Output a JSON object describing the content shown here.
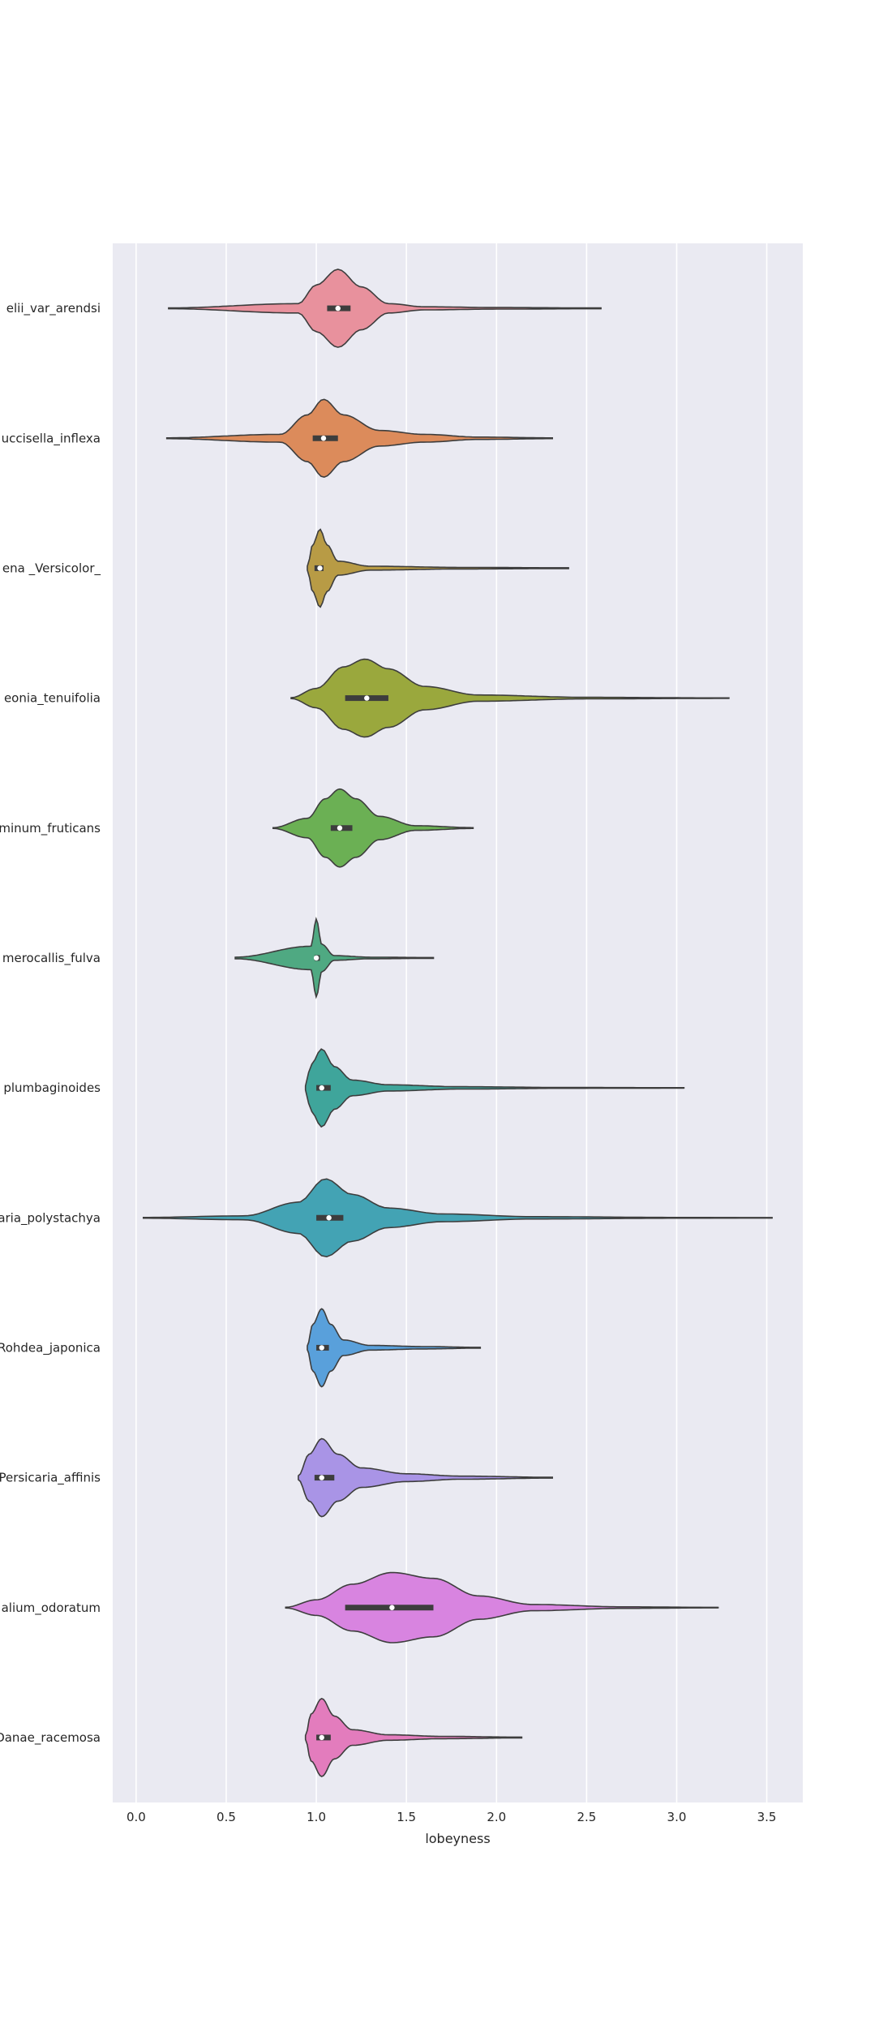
{
  "chart_data": {
    "type": "violin",
    "orientation": "horizontal",
    "xlabel": "lobeyness",
    "ylabel": "",
    "xlim": [
      -0.13,
      3.7
    ],
    "xticks": [
      0.0,
      0.5,
      1.0,
      1.5,
      2.0,
      2.5,
      3.0,
      3.5
    ],
    "xtick_labels": [
      "0.0",
      "0.5",
      "1.0",
      "1.5",
      "2.0",
      "2.5",
      "3.0",
      "3.5"
    ],
    "grid": true,
    "background": "#eaeaf2",
    "categories": [
      "elii_var_arendsi",
      "uccisella_inflexa",
      "ena _Versicolor_",
      "eonia_tenuifolia",
      "minum_fruticans",
      "merocallis_fulva",
      "plumbaginoides",
      "aria_polystachya",
      "Rohdea_japonica",
      "Persicaria_affinis",
      "alium_odoratum",
      "Danae_racemosa"
    ],
    "series": [
      {
        "min": 0.18,
        "q1": 1.06,
        "median": 1.12,
        "q3": 1.19,
        "max": 2.58,
        "color": "#e8919d",
        "density": [
          [
            0.18,
            0.01
          ],
          [
            0.9,
            0.12
          ],
          [
            1.0,
            0.6
          ],
          [
            1.12,
            1.0
          ],
          [
            1.25,
            0.55
          ],
          [
            1.4,
            0.12
          ],
          [
            1.6,
            0.04
          ],
          [
            2.0,
            0.02
          ],
          [
            2.58,
            0.01
          ]
        ]
      },
      {
        "min": 0.17,
        "q1": 0.98,
        "median": 1.04,
        "q3": 1.12,
        "max": 2.31,
        "color": "#dc8b5b",
        "density": [
          [
            0.17,
            0.01
          ],
          [
            0.8,
            0.1
          ],
          [
            0.95,
            0.6
          ],
          [
            1.04,
            1.0
          ],
          [
            1.15,
            0.6
          ],
          [
            1.35,
            0.2
          ],
          [
            1.6,
            0.1
          ],
          [
            1.9,
            0.03
          ],
          [
            2.31,
            0.01
          ]
        ]
      },
      {
        "min": 0.95,
        "q1": 0.99,
        "median": 1.02,
        "q3": 1.04,
        "max": 2.4,
        "color": "#b89b45",
        "density": [
          [
            0.95,
            0.05
          ],
          [
            0.98,
            0.6
          ],
          [
            1.02,
            1.0
          ],
          [
            1.06,
            0.6
          ],
          [
            1.12,
            0.18
          ],
          [
            1.3,
            0.05
          ],
          [
            1.8,
            0.02
          ],
          [
            2.4,
            0.01
          ]
        ]
      },
      {
        "min": 0.86,
        "q1": 1.16,
        "median": 1.28,
        "q3": 1.4,
        "max": 3.29,
        "color": "#9aa83d",
        "density": [
          [
            0.86,
            0.01
          ],
          [
            1.0,
            0.25
          ],
          [
            1.15,
            0.8
          ],
          [
            1.27,
            1.0
          ],
          [
            1.4,
            0.75
          ],
          [
            1.6,
            0.3
          ],
          [
            1.9,
            0.08
          ],
          [
            2.5,
            0.02
          ],
          [
            3.29,
            0.005
          ]
        ]
      },
      {
        "min": 0.76,
        "q1": 1.08,
        "median": 1.13,
        "q3": 1.2,
        "max": 1.87,
        "color": "#6bb054",
        "density": [
          [
            0.76,
            0.01
          ],
          [
            0.95,
            0.25
          ],
          [
            1.05,
            0.75
          ],
          [
            1.13,
            1.0
          ],
          [
            1.22,
            0.75
          ],
          [
            1.35,
            0.3
          ],
          [
            1.55,
            0.06
          ],
          [
            1.87,
            0.01
          ]
        ]
      },
      {
        "min": 0.55,
        "q1": 0.99,
        "median": 1.0,
        "q3": 1.02,
        "max": 1.65,
        "color": "#4fa982",
        "density": [
          [
            0.55,
            0.02
          ],
          [
            0.97,
            0.3
          ],
          [
            1.0,
            1.0
          ],
          [
            1.03,
            0.35
          ],
          [
            1.1,
            0.06
          ],
          [
            1.3,
            0.02
          ],
          [
            1.65,
            0.01
          ]
        ]
      },
      {
        "min": 0.94,
        "q1": 1.0,
        "median": 1.03,
        "q3": 1.08,
        "max": 3.04,
        "color": "#3fa59b",
        "density": [
          [
            0.94,
            0.05
          ],
          [
            0.97,
            0.6
          ],
          [
            1.03,
            1.0
          ],
          [
            1.1,
            0.55
          ],
          [
            1.2,
            0.2
          ],
          [
            1.4,
            0.08
          ],
          [
            1.8,
            0.03
          ],
          [
            2.4,
            0.01
          ],
          [
            3.04,
            0.005
          ]
        ]
      },
      {
        "min": 0.04,
        "q1": 1.0,
        "median": 1.07,
        "q3": 1.15,
        "max": 3.53,
        "color": "#43a3b4",
        "density": [
          [
            0.04,
            0.01
          ],
          [
            0.6,
            0.05
          ],
          [
            0.9,
            0.4
          ],
          [
            1.05,
            1.0
          ],
          [
            1.2,
            0.6
          ],
          [
            1.4,
            0.25
          ],
          [
            1.7,
            0.1
          ],
          [
            2.2,
            0.03
          ],
          [
            3.0,
            0.01
          ],
          [
            3.53,
            0.005
          ]
        ]
      },
      {
        "min": 0.95,
        "q1": 1.0,
        "median": 1.03,
        "q3": 1.07,
        "max": 1.91,
        "color": "#59a0db",
        "density": [
          [
            0.95,
            0.05
          ],
          [
            0.98,
            0.6
          ],
          [
            1.03,
            1.0
          ],
          [
            1.08,
            0.6
          ],
          [
            1.15,
            0.2
          ],
          [
            1.3,
            0.06
          ],
          [
            1.6,
            0.03
          ],
          [
            1.91,
            0.01
          ]
        ]
      },
      {
        "min": 0.9,
        "q1": 0.99,
        "median": 1.03,
        "q3": 1.1,
        "max": 2.31,
        "color": "#a994e6",
        "density": [
          [
            0.9,
            0.05
          ],
          [
            0.96,
            0.6
          ],
          [
            1.03,
            1.0
          ],
          [
            1.12,
            0.6
          ],
          [
            1.25,
            0.25
          ],
          [
            1.5,
            0.1
          ],
          [
            1.8,
            0.04
          ],
          [
            2.31,
            0.01
          ]
        ]
      },
      {
        "min": 0.83,
        "q1": 1.16,
        "median": 1.42,
        "q3": 1.65,
        "max": 3.23,
        "color": "#d884e0",
        "density": [
          [
            0.83,
            0.01
          ],
          [
            1.0,
            0.2
          ],
          [
            1.2,
            0.6
          ],
          [
            1.42,
            0.9
          ],
          [
            1.65,
            0.75
          ],
          [
            1.9,
            0.3
          ],
          [
            2.2,
            0.08
          ],
          [
            2.7,
            0.02
          ],
          [
            3.23,
            0.005
          ]
        ]
      },
      {
        "min": 0.94,
        "q1": 1.0,
        "median": 1.03,
        "q3": 1.08,
        "max": 2.14,
        "color": "#e37cbd",
        "density": [
          [
            0.94,
            0.05
          ],
          [
            0.97,
            0.6
          ],
          [
            1.03,
            1.0
          ],
          [
            1.1,
            0.55
          ],
          [
            1.2,
            0.2
          ],
          [
            1.4,
            0.07
          ],
          [
            1.7,
            0.03
          ],
          [
            2.14,
            0.01
          ]
        ]
      }
    ]
  }
}
